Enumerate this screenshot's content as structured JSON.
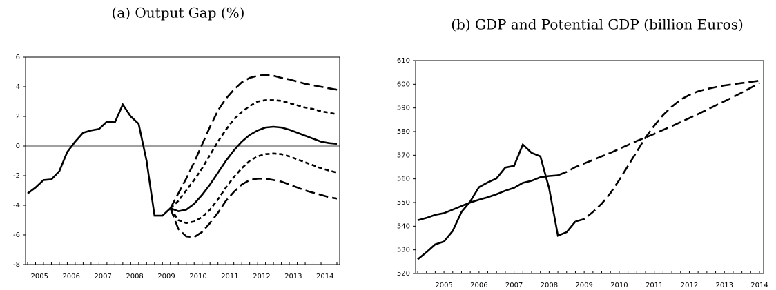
{
  "chart_data": [
    {
      "type": "line",
      "title": "(a) Output Gap (%)",
      "categories": [
        null,
        "2005",
        null,
        null,
        null,
        "2006",
        null,
        null,
        null,
        "2007",
        null,
        null,
        null,
        "2008",
        null,
        null,
        null,
        "2009",
        null,
        null,
        null,
        "2010",
        null,
        null,
        null,
        "2011",
        null,
        null,
        null,
        "2012",
        null,
        null,
        null,
        "2013",
        null,
        null,
        null,
        "2014",
        null,
        null
      ],
      "ylim": [
        -8,
        6
      ],
      "yticks": [
        -8,
        -6,
        -4,
        -2,
        0,
        2,
        4,
        6
      ],
      "zero_line": true,
      "series": [
        {
          "color": "#000000",
          "dash": "solid",
          "values": [
            -3.2,
            -2.8,
            -2.3,
            -2.25,
            -1.7,
            -0.4,
            0.3,
            0.9,
            1.05,
            1.15,
            1.65,
            1.6,
            2.8,
            2.0,
            1.5,
            -1.0,
            -4.7,
            -4.7,
            -4.2,
            -4.4,
            -4.3,
            -3.9,
            -3.3,
            -2.6,
            -1.8,
            -1.0,
            -0.3,
            0.3,
            0.75,
            1.05,
            1.25,
            1.3,
            1.25,
            1.1,
            0.9,
            0.7,
            0.5,
            0.3,
            0.2,
            0.15
          ]
        },
        {
          "color": "#000000",
          "dash": "long",
          "values": [
            null,
            null,
            null,
            null,
            null,
            null,
            null,
            null,
            null,
            null,
            null,
            null,
            null,
            null,
            null,
            null,
            null,
            null,
            -4.2,
            -3.2,
            -2.2,
            -1.1,
            0.1,
            1.3,
            2.4,
            3.2,
            3.8,
            4.3,
            4.6,
            4.75,
            4.8,
            4.75,
            4.6,
            4.5,
            4.35,
            4.2,
            4.1,
            4.0,
            3.9,
            3.8
          ]
        },
        {
          "color": "#000000",
          "dash": "short",
          "values": [
            null,
            null,
            null,
            null,
            null,
            null,
            null,
            null,
            null,
            null,
            null,
            null,
            null,
            null,
            null,
            null,
            null,
            null,
            -4.2,
            -3.7,
            -3.0,
            -2.3,
            -1.5,
            -0.6,
            0.3,
            1.1,
            1.8,
            2.3,
            2.7,
            3.0,
            3.1,
            3.1,
            3.05,
            2.9,
            2.75,
            2.6,
            2.5,
            2.35,
            2.25,
            2.15
          ]
        },
        {
          "color": "#000000",
          "dash": "short",
          "values": [
            null,
            null,
            null,
            null,
            null,
            null,
            null,
            null,
            null,
            null,
            null,
            null,
            null,
            null,
            null,
            null,
            null,
            null,
            -4.2,
            -5.0,
            -5.2,
            -5.1,
            -4.8,
            -4.3,
            -3.6,
            -2.8,
            -2.1,
            -1.5,
            -1.0,
            -0.7,
            -0.55,
            -0.5,
            -0.55,
            -0.7,
            -0.9,
            -1.1,
            -1.3,
            -1.5,
            -1.65,
            -1.8
          ]
        },
        {
          "color": "#000000",
          "dash": "long",
          "values": [
            null,
            null,
            null,
            null,
            null,
            null,
            null,
            null,
            null,
            null,
            null,
            null,
            null,
            null,
            null,
            null,
            null,
            null,
            -4.2,
            -5.6,
            -6.1,
            -6.15,
            -5.8,
            -5.2,
            -4.5,
            -3.7,
            -3.1,
            -2.6,
            -2.3,
            -2.2,
            -2.2,
            -2.3,
            -2.4,
            -2.6,
            -2.8,
            -3.0,
            -3.15,
            -3.3,
            -3.45,
            -3.55
          ]
        }
      ]
    },
    {
      "type": "line",
      "title": "(b) GDP and Potential GDP (billion Euros)",
      "categories": [
        null,
        null,
        null,
        "2005",
        null,
        null,
        null,
        "2006",
        null,
        null,
        null,
        "2007",
        null,
        null,
        null,
        "2008",
        null,
        null,
        null,
        "2009",
        null,
        null,
        null,
        "2010",
        null,
        null,
        null,
        "2011",
        null,
        null,
        null,
        "2012",
        null,
        null,
        null,
        "2013",
        null,
        null,
        null,
        "2014"
      ],
      "ylim": [
        520,
        610
      ],
      "yticks": [
        520,
        530,
        540,
        550,
        560,
        570,
        580,
        590,
        600,
        610
      ],
      "series": [
        {
          "color": "#000000",
          "dash": "solid",
          "values": [
            526,
            529,
            532.3,
            533.5,
            538,
            546,
            550.5,
            556.5,
            558.5,
            560.2,
            564.8,
            565.5,
            574.5,
            571,
            569.5,
            556,
            536,
            537.5,
            542,
            null,
            null,
            null,
            null,
            null,
            null,
            null,
            null,
            null,
            null,
            null,
            null,
            null,
            null,
            null,
            null,
            null,
            null,
            null,
            null,
            null
          ]
        },
        {
          "color": "#000000",
          "dash": "long",
          "values": [
            null,
            null,
            null,
            null,
            null,
            null,
            null,
            null,
            null,
            null,
            null,
            null,
            null,
            null,
            null,
            null,
            null,
            null,
            542,
            543,
            546,
            549.5,
            554,
            559.5,
            565.5,
            571.5,
            577.5,
            582.5,
            587,
            590.5,
            593.5,
            595.5,
            597,
            598,
            598.8,
            599.5,
            600,
            600.5,
            601,
            601.5
          ]
        },
        {
          "color": "#000000",
          "dash": "solid",
          "values": [
            542.5,
            543.5,
            544.8,
            545.5,
            547,
            548.5,
            550,
            551.2,
            552.2,
            553.5,
            555,
            556.2,
            558.3,
            559.2,
            560.7,
            561.2,
            561.5,
            null,
            null,
            null,
            null,
            null,
            null,
            null,
            null,
            null,
            null,
            null,
            null,
            null,
            null,
            null,
            null,
            null,
            null,
            null,
            null,
            null,
            null,
            null
          ]
        },
        {
          "color": "#000000",
          "dash": "long",
          "values": [
            null,
            null,
            null,
            null,
            null,
            null,
            null,
            null,
            null,
            null,
            null,
            null,
            null,
            null,
            null,
            null,
            561.5,
            563,
            565,
            566.5,
            568,
            569.5,
            571,
            572.7,
            574.3,
            576,
            577.5,
            579,
            580.7,
            582.3,
            584,
            585.7,
            587.4,
            589.2,
            591,
            592.8,
            594.6,
            596.5,
            598.5,
            600.5
          ]
        }
      ]
    }
  ]
}
